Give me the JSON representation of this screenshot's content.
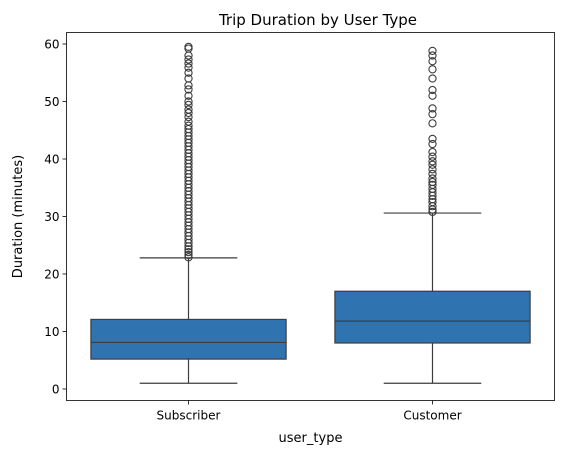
{
  "chart_data": {
    "type": "box",
    "title": "Trip Duration by User Type",
    "xlabel": "user_type",
    "ylabel": "Duration (minutes)",
    "ylim": [
      -2,
      62
    ],
    "yticks": [
      0,
      10,
      20,
      30,
      40,
      50,
      60
    ],
    "grid": false,
    "legend": "none",
    "color": "#2f74b0",
    "categories": [
      "Subscriber",
      "Customer"
    ],
    "series": [
      {
        "category": "Subscriber",
        "whisker_low": 1,
        "q1": 5.2,
        "median": 8.1,
        "q3": 12.1,
        "whisker_high": 22.8,
        "outliers": [
          22.9,
          23.3,
          23.8,
          24.3,
          24.8,
          25.4,
          26.0,
          26.6,
          27.2,
          27.8,
          28.4,
          29.0,
          29.6,
          30.2,
          30.8,
          31.4,
          32.0,
          32.6,
          33.2,
          33.8,
          34.4,
          35.0,
          35.6,
          36.2,
          36.8,
          37.4,
          38.0,
          38.6,
          39.2,
          39.8,
          40.4,
          41.0,
          41.6,
          42.2,
          42.8,
          43.4,
          44.0,
          44.6,
          45.2,
          45.8,
          46.5,
          47.3,
          48.0,
          48.6,
          49.4,
          50.0,
          51.0,
          52.1,
          52.8,
          54.0,
          55.0,
          55.9,
          56.6,
          57.3,
          58.0,
          59.2,
          59.5
        ]
      },
      {
        "category": "Customer",
        "whisker_low": 1,
        "q1": 8.0,
        "median": 11.8,
        "q3": 17.0,
        "whisker_high": 30.6,
        "outliers": [
          30.8,
          31.2,
          31.8,
          32.5,
          33.0,
          33.6,
          34.2,
          34.8,
          35.5,
          36.0,
          36.6,
          37.4,
          38.2,
          39.0,
          39.6,
          40.4,
          41.2,
          42.6,
          43.5,
          46.2,
          47.8,
          48.8,
          51.0,
          52.0,
          54.0,
          55.6,
          57.0,
          58.0,
          58.8
        ]
      }
    ]
  }
}
